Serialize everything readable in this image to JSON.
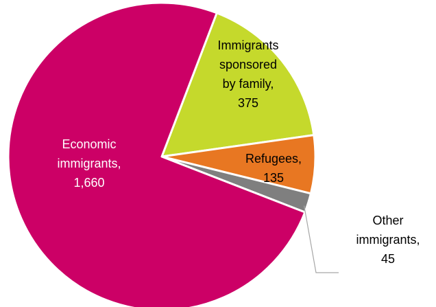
{
  "chart_data": {
    "type": "pie",
    "title": "",
    "slices": [
      {
        "label": "Economic immigrants",
        "value": 1660,
        "value_text": "1,660",
        "color": "#CC0066",
        "label_lines": [
          "Economic",
          "immigrants,",
          "1,660"
        ],
        "label_color": "#ffffff"
      },
      {
        "label": "Immigrants sponsored by family",
        "value": 375,
        "value_text": "375",
        "color": "#C5D92C",
        "label_lines": [
          "Immigrants",
          "sponsored",
          "by family,",
          "375"
        ],
        "label_color": "#000000"
      },
      {
        "label": "Refugees",
        "value": 135,
        "value_text": "135",
        "color": "#E87722",
        "label_lines": [
          "Refugees,",
          "135"
        ],
        "label_color": "#000000"
      },
      {
        "label": "Other immigrants",
        "value": 45,
        "value_text": "45",
        "color": "#7F7F7F",
        "label_lines": [
          "Other",
          "immigrants,",
          "45"
        ],
        "label_color": "#000000"
      }
    ]
  }
}
